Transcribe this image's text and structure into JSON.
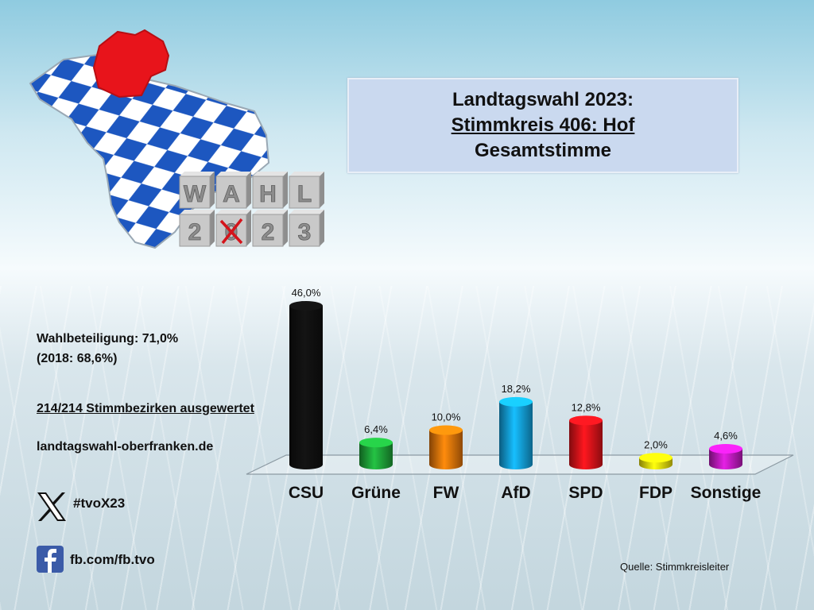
{
  "header": {
    "title_line1": "Landtagswahl 2023:",
    "title_line2": "Stimmkreis 406: Hof",
    "title_line3": "Gesamtstimme"
  },
  "logo": {
    "cubes_top": [
      "W",
      "A",
      "H",
      "L"
    ],
    "cubes_bottom": [
      "2",
      "0",
      "2",
      "3"
    ],
    "map_colors": {
      "blue": "#1d57c0",
      "white": "#ffffff",
      "highlight": "#e8141b"
    }
  },
  "info": {
    "turnout": "Wahlbeteiligung: 71,0%",
    "turnout_prev": "(2018: 68,6%)",
    "districts": "214/214 Stimmbezirken ausgewertet",
    "website": "landtagswahl-oberfranken.de"
  },
  "social": {
    "x_icon": "x-logo-icon",
    "hashtag": "#tvoX23",
    "fb_icon": "facebook-icon",
    "facebook": "fb.com/fb.tvo"
  },
  "source": "Quelle: Stimmkreisleiter",
  "chart_data": {
    "type": "bar",
    "categories": [
      "CSU",
      "Grüne",
      "FW",
      "AfD",
      "SPD",
      "FDP",
      "Sonstige"
    ],
    "values": [
      46.0,
      6.4,
      10.0,
      18.2,
      12.8,
      2.0,
      4.6
    ],
    "value_labels": [
      "46,0%",
      "6,4%",
      "10,0%",
      "18,2%",
      "12,8%",
      "2,0%",
      "4,6%"
    ],
    "colors": [
      "#111111",
      "#1faa3b",
      "#ef7a0a",
      "#14a6e6",
      "#e8141b",
      "#f5ea0c",
      "#c81cc8"
    ],
    "title": "",
    "xlabel": "",
    "ylabel": "",
    "ylim": [
      0,
      46
    ],
    "grid": false,
    "legend": "none"
  }
}
